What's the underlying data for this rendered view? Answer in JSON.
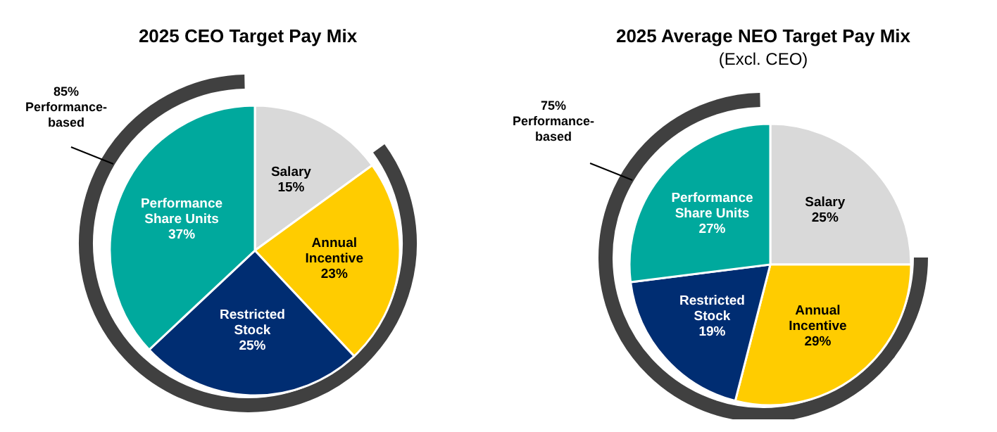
{
  "chart_data": [
    {
      "type": "pie",
      "title": "2025 CEO Target Pay Mix",
      "categories": [
        "Salary",
        "Annual Incentive",
        "Restricted Stock",
        "Performance Share Units"
      ],
      "values": [
        15,
        23,
        25,
        37
      ],
      "colors": [
        "#d9d9d9",
        "#ffcc00",
        "#002d72",
        "#00a99d"
      ],
      "value_labels": [
        "15%",
        "23%",
        "25%",
        "37%"
      ],
      "annotations": [
        "85% Performance-based"
      ]
    },
    {
      "type": "pie",
      "title": "2025 Average NEO Target Pay Mix",
      "subtitle": "(Excl. CEO)",
      "categories": [
        "Salary",
        "Annual Incentive",
        "Restricted Stock",
        "Performance Share Units"
      ],
      "values": [
        25,
        29,
        19,
        27
      ],
      "colors": [
        "#d9d9d9",
        "#ffcc00",
        "#002d72",
        "#00a99d"
      ],
      "value_labels": [
        "25%",
        "29%",
        "19%",
        "27%"
      ],
      "annotations": [
        "75% Performance-based"
      ]
    }
  ]
}
